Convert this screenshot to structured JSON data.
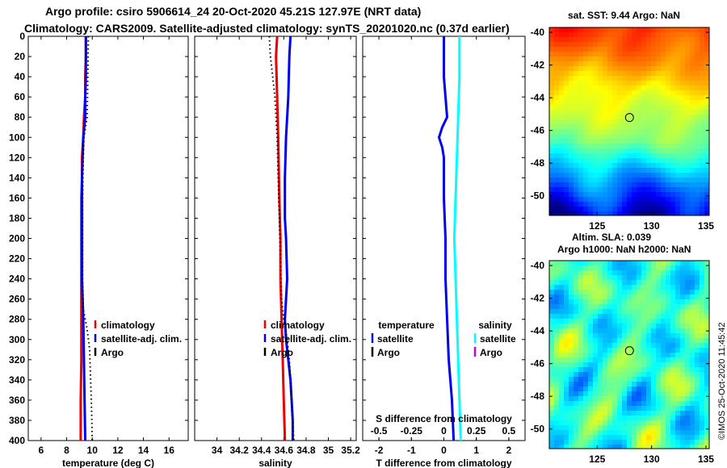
{
  "header": {
    "line1": "Argo profile: csiro 5906614_24 20-Oct-2020 45.21S 127.97E (NRT data)",
    "line2": "Climatology: CARS2009. Satellite-adjusted climatology: synTS_20201020.nc (0.37d earlier)"
  },
  "maps": {
    "sst_title": "sat. SST: 9.44 Argo: NaN",
    "sla_title1": "Altim. SLA: 0.039",
    "sla_title2": "Argo h1000: NaN h2000: NaN",
    "lat_ticks": [
      "-40",
      "-42",
      "-44",
      "-46",
      "-48",
      "-50"
    ],
    "lon_ticks": [
      "125",
      "130",
      "135"
    ],
    "argo_position": {
      "lon": 127.97,
      "lat": -45.21
    }
  },
  "credit": "©IMOS 25-Oct-2020 11:45:42",
  "colors": {
    "climatology": "#ee0000",
    "satellite": "#0000ee",
    "argo": "#000000",
    "sat_salinity": "#00ffff",
    "argo_salinity": "#cc00cc"
  },
  "chart_data": [
    {
      "type": "line",
      "title": "",
      "xlabel": "temperature (deg C)",
      "ylabel": "",
      "xlim": [
        5,
        17.5
      ],
      "ylim": [
        400,
        0
      ],
      "xticks": [
        6,
        8,
        10,
        12,
        14,
        16
      ],
      "yticks": [
        0,
        20,
        40,
        60,
        80,
        100,
        120,
        140,
        160,
        180,
        200,
        220,
        240,
        260,
        280,
        300,
        320,
        340,
        360,
        380,
        400
      ],
      "legend": {
        "position": "right-middle",
        "entries": [
          "climatology",
          "satellite-adj. clim.",
          "Argo"
        ]
      },
      "series": [
        {
          "name": "climatology",
          "depth": [
            0,
            20,
            40,
            60,
            80,
            100,
            120,
            140,
            160,
            180,
            200,
            240,
            280,
            320,
            360,
            400
          ],
          "values": [
            9.5,
            9.5,
            9.45,
            9.45,
            9.35,
            9.3,
            9.2,
            9.2,
            9.15,
            9.15,
            9.15,
            9.15,
            9.15,
            9.15,
            9.1,
            9.1
          ]
        },
        {
          "name": "satellite-adj. clim.",
          "depth": [
            0,
            20,
            40,
            60,
            80,
            100,
            120,
            140,
            160,
            180,
            200,
            240,
            260,
            280,
            320,
            360,
            400
          ],
          "values": [
            9.5,
            9.5,
            9.5,
            9.45,
            9.45,
            9.3,
            9.25,
            9.2,
            9.2,
            9.2,
            9.2,
            9.2,
            9.25,
            9.3,
            9.35,
            9.4,
            9.45
          ]
        },
        {
          "name": "Argo",
          "depth": [
            0,
            40,
            80,
            100,
            120,
            160,
            200,
            240,
            270,
            290,
            310,
            330,
            350,
            370,
            400
          ],
          "values": [
            9.7,
            9.65,
            9.6,
            9.35,
            9.3,
            9.25,
            9.25,
            9.25,
            9.3,
            9.6,
            9.8,
            9.85,
            9.9,
            9.95,
            10.0
          ]
        }
      ]
    },
    {
      "type": "line",
      "title": "",
      "xlabel": "salinity",
      "ylabel": "",
      "xlim": [
        33.8,
        35.25
      ],
      "ylim": [
        400,
        0
      ],
      "xticks": [
        34,
        34.2,
        34.4,
        34.6,
        34.8,
        35,
        35.2
      ],
      "xticklabels": [
        "34",
        "34.2",
        "34.4",
        "34.6",
        "34.8",
        "35",
        "35.2"
      ],
      "legend": {
        "position": "right-middle",
        "entries": [
          "climatology",
          "satellite-adj. clim.",
          "Argo"
        ]
      },
      "series": [
        {
          "name": "climatology",
          "depth": [
            0,
            20,
            60,
            100,
            160,
            200,
            240,
            280,
            320,
            360,
            400
          ],
          "values": [
            34.54,
            34.53,
            34.54,
            34.55,
            34.56,
            34.57,
            34.57,
            34.58,
            34.59,
            34.6,
            34.61
          ]
        },
        {
          "name": "satellite-adj. clim.",
          "depth": [
            0,
            20,
            60,
            100,
            140,
            180,
            200,
            240,
            260,
            280,
            300,
            320,
            340,
            360,
            380,
            400
          ],
          "values": [
            34.66,
            34.65,
            34.64,
            34.62,
            34.61,
            34.61,
            34.62,
            34.63,
            34.62,
            34.61,
            34.62,
            34.64,
            34.66,
            34.67,
            34.68,
            34.68
          ]
        },
        {
          "name": "Argo",
          "depth": [
            0,
            20,
            40,
            60,
            80,
            100,
            140,
            180,
            220,
            260,
            280,
            300,
            320,
            340,
            360,
            380,
            400
          ],
          "values": [
            34.47,
            34.48,
            34.5,
            34.52,
            34.53,
            34.54,
            34.55,
            34.56,
            34.57,
            34.58,
            34.6,
            34.63,
            34.65,
            34.66,
            34.67,
            34.68,
            34.69
          ]
        }
      ]
    },
    {
      "type": "line",
      "title": "",
      "xlabel": "T difference from climatology",
      "x2label": "S difference from climatology",
      "xlim": [
        -2.5,
        2.5
      ],
      "ylim": [
        400,
        0
      ],
      "xticks": [
        -2,
        -1,
        0,
        1,
        2
      ],
      "x2ticks": [
        -0.5,
        -0.25,
        0,
        0.25,
        0.5
      ],
      "x2ticklabels": [
        "-0.5",
        "-0.25",
        "0",
        "0.25",
        "0.5"
      ],
      "legend": {
        "position": "bottom",
        "groups": [
          {
            "title": "temperature",
            "entries": [
              "satellite",
              "Argo"
            ]
          },
          {
            "title": "salinity",
            "entries": [
              "satellite",
              "Argo"
            ]
          }
        ]
      },
      "series": [
        {
          "name": "temperature satellite",
          "depth": [
            0,
            40,
            80,
            90,
            100,
            110,
            120,
            160,
            200,
            240,
            280,
            320,
            360,
            400
          ],
          "values": [
            0.0,
            0.0,
            0.1,
            -0.05,
            -0.15,
            -0.05,
            0.0,
            0.0,
            0.05,
            0.05,
            0.1,
            0.15,
            0.25,
            0.3
          ]
        },
        {
          "name": "salinity satellite",
          "depth": [
            0,
            40,
            80,
            120,
            160,
            200,
            240,
            280,
            320,
            360,
            400
          ],
          "values": [
            0.12,
            0.12,
            0.11,
            0.1,
            0.09,
            0.08,
            0.09,
            0.1,
            0.11,
            0.12,
            0.13
          ]
        }
      ]
    }
  ]
}
